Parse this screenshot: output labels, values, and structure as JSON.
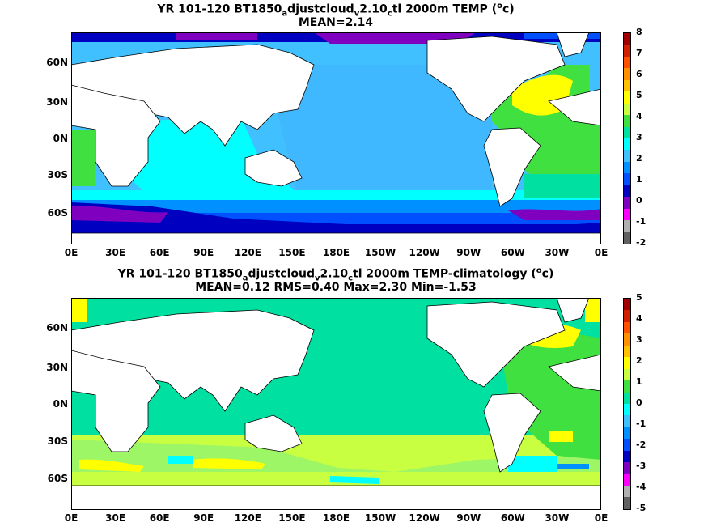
{
  "panels": [
    {
      "title_parts": [
        "YR 101-120 BT1850",
        "a",
        "djustcloud",
        "v",
        "2.10",
        "c",
        "tl 2000m TEMP (",
        "o",
        "c)"
      ],
      "subtitle": "MEAN=2.14",
      "colorbar": {
        "labels": [
          "8",
          "7",
          "6",
          "5",
          "4",
          "3",
          "2",
          "1",
          "0",
          "-1",
          "-2"
        ],
        "colors": [
          "#a00000",
          "#d02000",
          "#ff5000",
          "#ff9000",
          "#ffc000",
          "#ffff00",
          "#c8ff40",
          "#40e040",
          "#00e0a0",
          "#00ffff",
          "#40c0ff",
          "#0090ff",
          "#0050ff",
          "#0000c0",
          "#8000c0",
          "#ff00ff",
          "#b0b0b0",
          "#606060"
        ]
      }
    },
    {
      "title_parts": [
        "YR 101-120 BT1850",
        "a",
        "djustcloud",
        "v",
        "2.10",
        "c",
        "tl 2000m TEMP-climatology (",
        "o",
        "c)"
      ],
      "subtitle": "MEAN=0.12   RMS=0.40   Max=2.30   Min=-1.53",
      "colorbar": {
        "labels": [
          "5",
          "4",
          "3",
          "2",
          "1",
          "0",
          "-1",
          "-2",
          "-3",
          "-4",
          "-5"
        ],
        "colors": [
          "#a00000",
          "#d02000",
          "#ff5000",
          "#ff9000",
          "#ffc000",
          "#ffff00",
          "#c8ff40",
          "#40e040",
          "#00e0a0",
          "#00ffff",
          "#40c0ff",
          "#0090ff",
          "#0050ff",
          "#0000c0",
          "#8000c0",
          "#ff00ff",
          "#b0b0b0",
          "#606060"
        ]
      }
    }
  ],
  "lat_labels": [
    "60N",
    "30N",
    "0N",
    "30S",
    "60S"
  ],
  "lon_labels": [
    "0E",
    "30E",
    "60E",
    "90E",
    "120E",
    "150E",
    "180E",
    "150W",
    "120W",
    "90W",
    "60W",
    "30W",
    "0E"
  ]
}
